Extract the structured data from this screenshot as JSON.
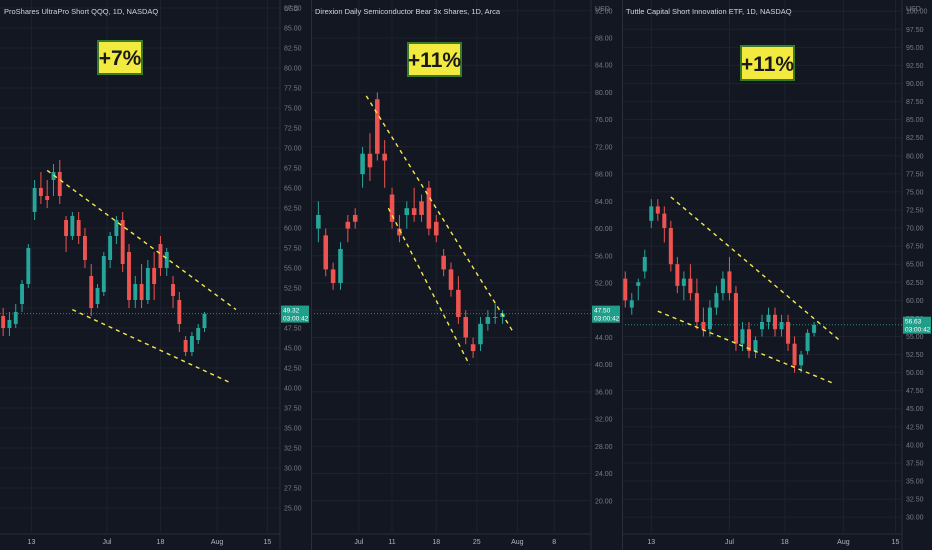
{
  "colors": {
    "background": "#131722",
    "up": "#26a69a",
    "down": "#ef5350",
    "trendline": "#f5e94b",
    "badge_fill": "#f3ea3f",
    "badge_border": "#3a7a2a",
    "price_label": "#1f9e8a",
    "grid": "#1e222d",
    "axis_text": "#787b86"
  },
  "chart_data": [
    {
      "type": "candlestick",
      "title": "ProShares UltraPro Short QQQ, 1D, NASDAQ",
      "badge": "+7%",
      "price_label": "49.32",
      "countdown": "03:00:42",
      "ylim": [
        22.5,
        88
      ],
      "yticks": [
        87.5,
        85.0,
        82.5,
        80.0,
        77.5,
        75.0,
        72.5,
        70.0,
        67.5,
        65.0,
        62.5,
        60.0,
        57.5,
        55.0,
        52.5,
        50.0,
        47.5,
        45.0,
        42.5,
        40.0,
        37.5,
        35.0,
        32.5,
        30.0,
        27.5,
        25.0
      ],
      "y_tick_labels": [
        "87.50",
        "85.00",
        "82.50",
        "80.00",
        "77.50",
        "75.00",
        "72.50",
        "70.00",
        "67.50",
        "65.00",
        "62.50",
        "60.00",
        "57.50",
        "55.00",
        "52.50",
        "50.00",
        "47.50",
        "45.00",
        "42.50",
        "40.00",
        "37.50",
        "35.00",
        "32.50",
        "30.00",
        "27.50",
        "25.00"
      ],
      "xlim": [
        0,
        43
      ],
      "x_ticks": [
        {
          "label": "13",
          "x": 4.5
        },
        {
          "label": "Jul",
          "x": 16.5
        },
        {
          "label": "18",
          "x": 25.0
        },
        {
          "label": "Aug",
          "x": 34.0
        },
        {
          "label": "15",
          "x": 42.0
        }
      ],
      "candles": [
        [
          49.0,
          50.0,
          46.5,
          47.5
        ],
        [
          47.5,
          49.5,
          46.5,
          48.5
        ],
        [
          48.0,
          50.5,
          47.5,
          49.5
        ],
        [
          50.5,
          53.5,
          49.5,
          53.0
        ],
        [
          53.0,
          58.0,
          52.5,
          57.5
        ],
        [
          62.0,
          66.0,
          61.0,
          65.0
        ],
        [
          65.0,
          67.0,
          63.0,
          64.0
        ],
        [
          64.0,
          66.0,
          62.5,
          63.5
        ],
        [
          66.0,
          68.0,
          64.0,
          67.0
        ],
        [
          67.0,
          68.5,
          63.0,
          64.0
        ],
        [
          61.0,
          61.5,
          57.0,
          59.0
        ],
        [
          59.0,
          62.0,
          58.5,
          61.5
        ],
        [
          61.0,
          62.0,
          58.0,
          59.0
        ],
        [
          59.0,
          60.0,
          55.0,
          56.0
        ],
        [
          54.0,
          55.5,
          49.0,
          50.0
        ],
        [
          50.5,
          53.0,
          50.0,
          52.5
        ],
        [
          52.0,
          57.0,
          51.5,
          56.5
        ],
        [
          56.0,
          59.5,
          55.0,
          59.0
        ],
        [
          59.0,
          61.5,
          58.0,
          61.0
        ],
        [
          61.0,
          62.0,
          54.5,
          55.5
        ],
        [
          57.0,
          58.0,
          50.0,
          51.0
        ],
        [
          51.0,
          54.0,
          50.0,
          53.0
        ],
        [
          53.0,
          55.5,
          50.0,
          51.0
        ],
        [
          51.0,
          56.0,
          50.5,
          55.0
        ],
        [
          55.0,
          57.0,
          51.0,
          53.0
        ],
        [
          58.0,
          59.0,
          54.0,
          55.0
        ],
        [
          55.0,
          57.5,
          54.0,
          57.0
        ],
        [
          53.0,
          54.0,
          50.0,
          51.5
        ],
        [
          51.0,
          52.0,
          47.0,
          48.0
        ],
        [
          46.0,
          46.5,
          44.0,
          44.5
        ],
        [
          44.5,
          47.0,
          44.0,
          46.5
        ],
        [
          46.0,
          48.0,
          45.5,
          47.5
        ],
        [
          47.5,
          49.5,
          47.0,
          49.3
        ]
      ],
      "trendlines": [
        {
          "from": [
            7,
            67.2
          ],
          "to": [
            37,
            49.8
          ]
        },
        {
          "from": [
            11,
            49.8
          ],
          "to": [
            36,
            40.7
          ]
        }
      ]
    },
    {
      "type": "candlestick",
      "title": "Direxion Daily Semiconductor Bear 3x Shares, 1D, Arca",
      "badge": "+11%",
      "price_label": "47.50",
      "countdown": "03:00:42",
      "ylim": [
        16,
        93
      ],
      "yticks": [
        92,
        88,
        84,
        80,
        76,
        72,
        68,
        64,
        60,
        56,
        52,
        48,
        44,
        40,
        36,
        32,
        28,
        24,
        20
      ],
      "y_tick_labels": [
        "92.00",
        "88.00",
        "84.00",
        "80.00",
        "76.00",
        "72.00",
        "68.00",
        "64.00",
        "60.00",
        "56.00",
        "52.00",
        "48.00",
        "44.00",
        "40.00",
        "36.00",
        "32.00",
        "28.00",
        "24.00",
        "20.00"
      ],
      "xlim": [
        0,
        36
      ],
      "x_ticks": [
        {
          "label": "Jul",
          "x": 6.5
        },
        {
          "label": "11",
          "x": 11.0
        },
        {
          "label": "18",
          "x": 17.0
        },
        {
          "label": "25",
          "x": 22.5
        },
        {
          "label": "Aug",
          "x": 28.0
        },
        {
          "label": "8",
          "x": 33.0
        }
      ],
      "candles": [
        [
          60.0,
          64.0,
          58.0,
          62.0
        ],
        [
          59.0,
          60.0,
          53.0,
          54.0
        ],
        [
          54.0,
          55.0,
          51.0,
          52.0
        ],
        [
          52.0,
          58.0,
          51.0,
          57.0
        ],
        [
          61.0,
          62.0,
          58.0,
          60.0
        ],
        [
          62.0,
          63.0,
          60.0,
          61.0
        ],
        [
          68.0,
          72.0,
          66.0,
          71.0
        ],
        [
          71.0,
          74.0,
          67.0,
          69.0
        ],
        [
          79.0,
          80.0,
          70.0,
          71.0
        ],
        [
          71.0,
          73.0,
          66.0,
          70.0
        ],
        [
          65.0,
          66.0,
          60.0,
          61.0
        ],
        [
          60.0,
          62.0,
          58.0,
          59.0
        ],
        [
          62.0,
          64.0,
          60.0,
          63.0
        ],
        [
          63.0,
          66.0,
          61.0,
          62.0
        ],
        [
          64.0,
          65.0,
          61.0,
          62.0
        ],
        [
          66.0,
          67.0,
          59.0,
          60.0
        ],
        [
          61.0,
          62.0,
          58.0,
          59.0
        ],
        [
          56.0,
          57.0,
          53.0,
          54.0
        ],
        [
          54.0,
          55.0,
          50.0,
          51.0
        ],
        [
          51.0,
          53.0,
          46.0,
          47.0
        ],
        [
          47.0,
          48.0,
          43.0,
          44.0
        ],
        [
          43.0,
          44.0,
          41.0,
          42.0
        ],
        [
          43.0,
          47.0,
          42.0,
          46.0
        ],
        [
          46.0,
          48.0,
          45.0,
          47.0
        ],
        [
          47.0,
          49.0,
          46.0,
          47.0
        ],
        [
          47.0,
          48.0,
          46.0,
          47.5
        ]
      ],
      "trendlines": [
        {
          "from": [
            7.5,
            79.5
          ],
          "to": [
            27.5,
            44.7
          ]
        },
        {
          "from": [
            10.5,
            63.0
          ],
          "to": [
            21.5,
            40.0
          ]
        }
      ]
    },
    {
      "type": "candlestick",
      "title": "Tuttle Capital Short Innovation ETF, 1D, NASDAQ",
      "badge": "+11%",
      "price_label": "56.63",
      "countdown": "03:00:42",
      "ylim": [
        28.5,
        101
      ],
      "yticks": [
        100.0,
        97.5,
        95.0,
        92.5,
        90.0,
        87.5,
        85.0,
        82.5,
        80.0,
        77.5,
        75.0,
        72.5,
        70.0,
        67.5,
        65.0,
        62.5,
        60.0,
        57.5,
        55.0,
        52.5,
        50.0,
        47.5,
        45.0,
        42.5,
        40.0,
        37.5,
        35.0,
        32.5,
        30.0
      ],
      "y_tick_labels": [
        "100.00",
        "97.50",
        "95.00",
        "92.50",
        "90.00",
        "87.50",
        "85.00",
        "82.50",
        "80.00",
        "77.50",
        "75.00",
        "72.50",
        "70.00",
        "67.50",
        "65.00",
        "62.50",
        "60.00",
        "57.50",
        "55.00",
        "52.50",
        "50.00",
        "47.50",
        "45.00",
        "42.50",
        "40.00",
        "37.50",
        "35.00",
        "32.50",
        "30.00"
      ],
      "xlim": [
        0,
        43
      ],
      "x_ticks": [
        {
          "label": "13",
          "x": 4.5
        },
        {
          "label": "Jul",
          "x": 16.5
        },
        {
          "label": "18",
          "x": 25.0
        },
        {
          "label": "Aug",
          "x": 34.0
        },
        {
          "label": "15",
          "x": 42.0
        }
      ],
      "candles": [
        [
          63.0,
          64.0,
          59.0,
          60.0
        ],
        [
          59.0,
          61.0,
          58.0,
          60.0
        ],
        [
          62.0,
          63.0,
          60.0,
          62.5
        ],
        [
          64.0,
          67.0,
          63.0,
          66.0
        ],
        [
          71.0,
          74.0,
          70.0,
          73.0
        ],
        [
          73.0,
          74.0,
          71.0,
          72.0
        ],
        [
          72.0,
          73.0,
          68.0,
          70.0
        ],
        [
          70.0,
          71.0,
          64.0,
          65.0
        ],
        [
          65.0,
          66.0,
          61.0,
          62.0
        ],
        [
          62.0,
          64.0,
          60.0,
          63.0
        ],
        [
          63.0,
          65.0,
          60.0,
          61.0
        ],
        [
          61.0,
          63.0,
          56.0,
          57.0
        ],
        [
          57.0,
          59.0,
          55.0,
          56.0
        ],
        [
          56.0,
          60.0,
          55.0,
          59.0
        ],
        [
          59.0,
          62.0,
          58.0,
          61.0
        ],
        [
          61.0,
          64.0,
          60.0,
          63.0
        ],
        [
          64.0,
          66.0,
          60.0,
          61.0
        ],
        [
          61.0,
          62.0,
          53.0,
          54.0
        ],
        [
          54.0,
          57.0,
          53.0,
          56.0
        ],
        [
          56.0,
          57.0,
          52.0,
          53.0
        ],
        [
          53.0,
          55.0,
          52.0,
          54.5
        ],
        [
          56.0,
          58.0,
          55.0,
          57.0
        ],
        [
          57.0,
          59.0,
          56.0,
          58.0
        ],
        [
          58.0,
          59.0,
          55.0,
          56.0
        ],
        [
          56.0,
          58.0,
          55.0,
          57.0
        ],
        [
          57.0,
          58.0,
          53.0,
          54.0
        ],
        [
          54.0,
          55.0,
          50.0,
          51.0
        ],
        [
          51.0,
          53.0,
          50.0,
          52.5
        ],
        [
          53.0,
          56.0,
          52.5,
          55.5
        ],
        [
          55.5,
          57.0,
          55.0,
          56.63
        ]
      ],
      "trendlines": [
        {
          "from": [
            7.5,
            74.3
          ],
          "to": [
            33.5,
            54.4
          ]
        },
        {
          "from": [
            5.5,
            58.5
          ],
          "to": [
            32.5,
            48.5
          ]
        }
      ]
    }
  ]
}
